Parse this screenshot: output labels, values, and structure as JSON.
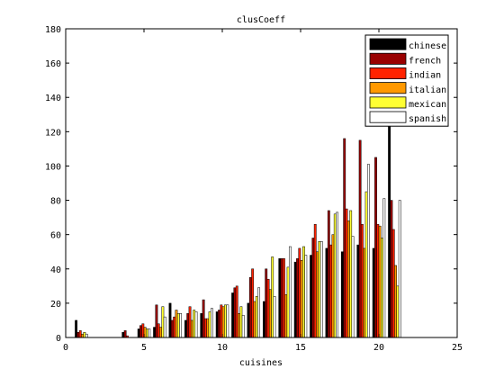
{
  "chart_data": {
    "type": "bar",
    "title": "clusCoeff",
    "xlabel": "cuisines",
    "ylabel": "",
    "xlim": [
      0,
      25
    ],
    "ylim": [
      0,
      180
    ],
    "xticks": [
      0,
      5,
      10,
      15,
      20,
      25
    ],
    "yticks": [
      0,
      20,
      40,
      60,
      80,
      100,
      120,
      140,
      160,
      180
    ],
    "grid": false,
    "legend_position": "top-right",
    "x": [
      1,
      2,
      3,
      4,
      5,
      6,
      7,
      8,
      9,
      10,
      11,
      12,
      13,
      14,
      15,
      16,
      17,
      18,
      19,
      20,
      21
    ],
    "series": [
      {
        "name": "chinese",
        "color": "#000000",
        "values": [
          10,
          0,
          0,
          3,
          5,
          6,
          20,
          10,
          14,
          15,
          26,
          20,
          21,
          46,
          44,
          48,
          52,
          50,
          54,
          52,
          130
        ]
      },
      {
        "name": "french",
        "color": "#990000",
        "values": [
          3,
          0,
          0,
          4,
          7,
          19,
          10,
          14,
          22,
          16,
          29,
          35,
          40,
          46,
          46,
          58,
          74,
          116,
          115,
          105,
          80
        ]
      },
      {
        "name": "indian",
        "color": "#ff2200",
        "values": [
          4,
          0,
          0,
          1,
          8,
          8,
          12,
          18,
          11,
          19,
          30,
          40,
          34,
          46,
          52,
          66,
          54,
          75,
          66,
          66,
          63
        ]
      },
      {
        "name": "italian",
        "color": "#ff9900",
        "values": [
          2,
          0,
          0,
          0,
          6,
          6,
          16,
          10,
          11,
          18,
          14,
          21,
          28,
          25,
          45,
          50,
          60,
          68,
          52,
          65,
          42
        ]
      },
      {
        "name": "mexican",
        "color": "#ffff33",
        "values": [
          3,
          0,
          0,
          0,
          5,
          18,
          14,
          16,
          15,
          19,
          18,
          24,
          47,
          41,
          53,
          56,
          72,
          74,
          85,
          58,
          30
        ]
      },
      {
        "name": "spanish",
        "color": "#ffffff",
        "values": [
          2,
          0,
          0,
          0,
          5,
          12,
          14,
          15,
          17,
          19,
          13,
          29,
          24,
          53,
          48,
          56,
          73,
          59,
          101,
          81,
          80
        ]
      }
    ]
  }
}
